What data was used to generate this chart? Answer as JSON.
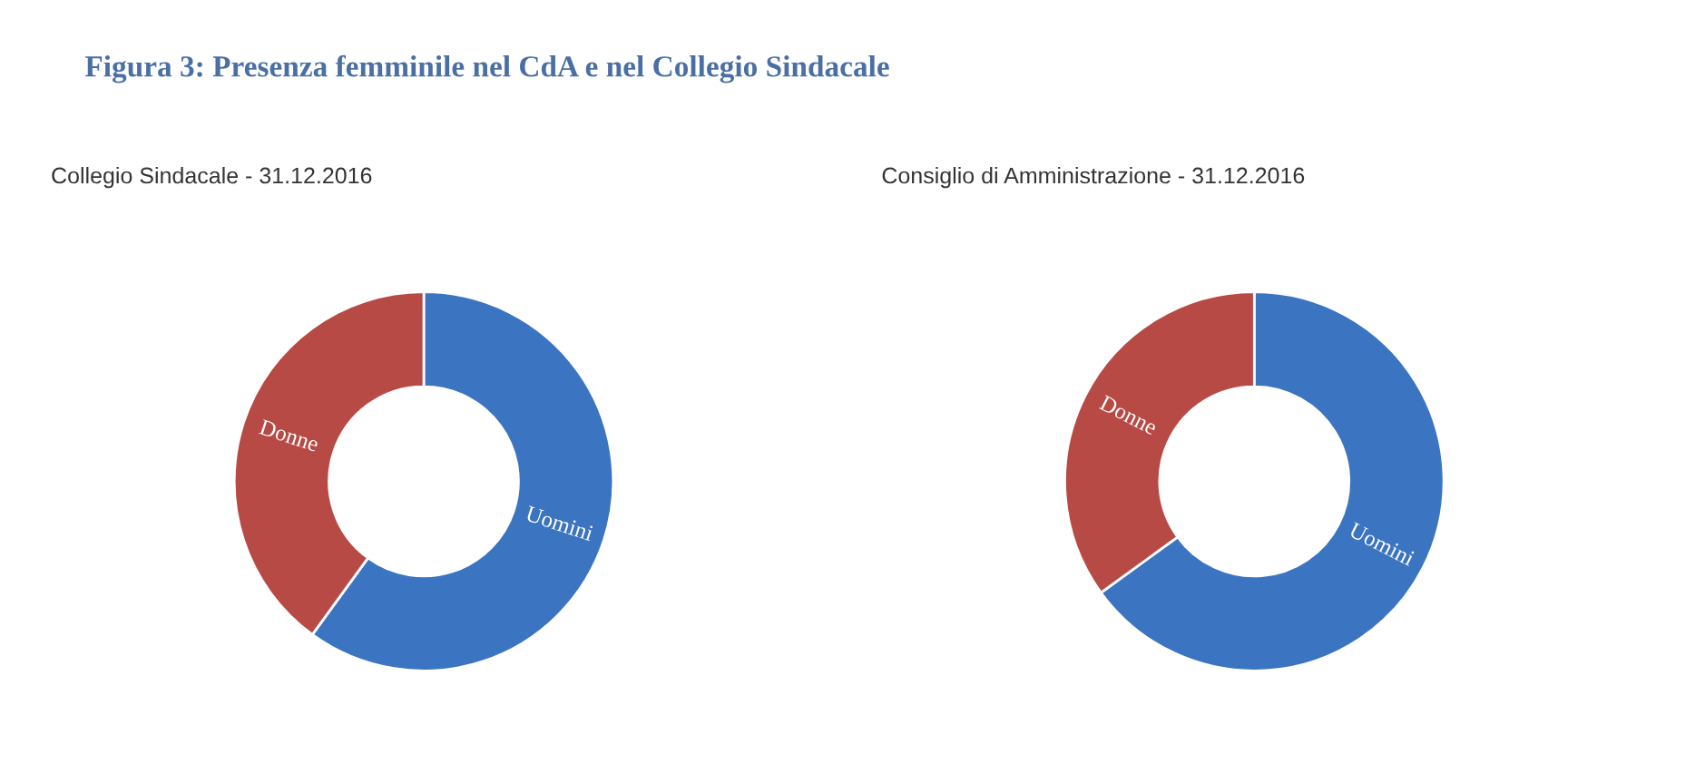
{
  "chart_data": [
    {
      "type": "donut",
      "title": "Collegio Sindacale - 31.12.2016",
      "categories": [
        "Uomini",
        "Donne"
      ],
      "values": [
        60,
        40
      ],
      "colors": [
        "#3b74c0",
        "#b84a45"
      ],
      "annotations": [
        "Figura 3: Presenza femminile nel CdA e nel Collegio Sindacale"
      ]
    },
    {
      "type": "donut",
      "title": "Consiglio di Amministrazione - 31.12.2016",
      "categories": [
        "Uomini",
        "Donne"
      ],
      "values": [
        65,
        35
      ],
      "colors": [
        "#3b74c0",
        "#b84a45"
      ]
    }
  ]
}
